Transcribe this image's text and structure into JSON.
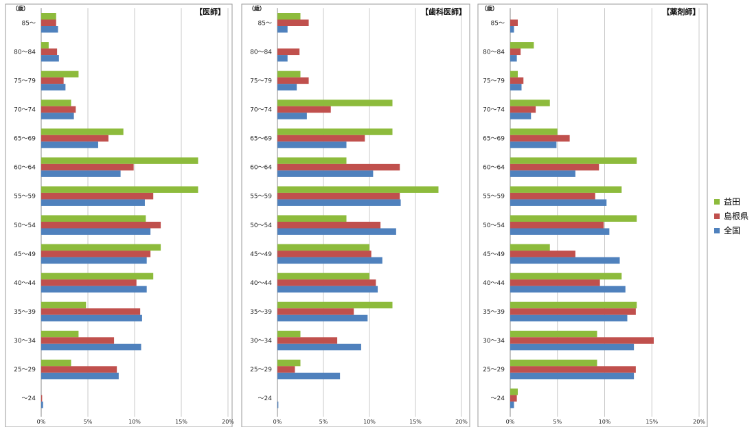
{
  "chart_data": [
    {
      "type": "bar",
      "orientation": "horizontal",
      "title": "【医師】",
      "unit_label": "（歳）",
      "categories": [
        "85～",
        "80～84",
        "75～79",
        "70～74",
        "65～69",
        "60～64",
        "55～59",
        "50～54",
        "45～49",
        "40～44",
        "35～39",
        "30～34",
        "25～29",
        "～24"
      ],
      "series": [
        {
          "name": "益田",
          "values": [
            1.6,
            0.8,
            4.0,
            3.2,
            8.8,
            16.8,
            16.8,
            11.2,
            12.8,
            12.0,
            4.8,
            4.0,
            3.2,
            0.0
          ]
        },
        {
          "name": "島根県",
          "values": [
            1.6,
            1.7,
            2.4,
            3.7,
            7.2,
            9.9,
            12.0,
            12.8,
            11.7,
            10.2,
            10.6,
            7.8,
            8.1,
            0.1
          ]
        },
        {
          "name": "全国",
          "values": [
            1.8,
            1.9,
            2.6,
            3.5,
            6.1,
            8.5,
            11.1,
            11.7,
            11.3,
            11.3,
            10.8,
            10.7,
            8.3,
            0.2
          ]
        }
      ],
      "xlim": [
        0,
        20
      ],
      "xticks": [
        "0%",
        "5%",
        "10%",
        "15%",
        "20%"
      ],
      "grid": true
    },
    {
      "type": "bar",
      "orientation": "horizontal",
      "title": "【歯科医師】",
      "unit_label": "（歳）",
      "categories": [
        "85～",
        "80～84",
        "75～79",
        "70～74",
        "65～69",
        "60～64",
        "55～59",
        "50～54",
        "45～49",
        "40～44",
        "35～39",
        "30～34",
        "25～29",
        "～24"
      ],
      "series": [
        {
          "name": "益田",
          "values": [
            2.5,
            0.0,
            2.5,
            12.5,
            12.5,
            7.5,
            17.5,
            7.5,
            10.0,
            10.0,
            12.5,
            2.5,
            2.5,
            0.0
          ]
        },
        {
          "name": "島根県",
          "values": [
            3.4,
            2.4,
            3.4,
            5.8,
            9.5,
            13.3,
            13.3,
            11.2,
            10.2,
            10.7,
            8.3,
            6.5,
            1.9,
            0.0
          ]
        },
        {
          "name": "全国",
          "values": [
            1.1,
            1.1,
            2.1,
            3.2,
            7.5,
            10.4,
            13.4,
            12.9,
            11.4,
            10.9,
            9.8,
            9.1,
            6.8,
            0.1
          ]
        }
      ],
      "xlim": [
        0,
        20
      ],
      "xticks": [
        "0%",
        "5%",
        "10%",
        "15%",
        "20%"
      ],
      "grid": true
    },
    {
      "type": "bar",
      "orientation": "horizontal",
      "title": "【薬剤師】",
      "unit_label": "（歳）",
      "categories": [
        "85～",
        "80～84",
        "75～79",
        "70～74",
        "65～69",
        "60～64",
        "55～59",
        "50～54",
        "45～49",
        "40～44",
        "35～39",
        "30～34",
        "25～29",
        "～24"
      ],
      "series": [
        {
          "name": "益田",
          "values": [
            0.0,
            2.5,
            0.8,
            4.2,
            5.0,
            13.4,
            11.8,
            13.4,
            4.2,
            11.8,
            13.4,
            9.2,
            9.2,
            0.8
          ]
        },
        {
          "name": "島根県",
          "values": [
            0.8,
            1.1,
            1.4,
            2.7,
            6.3,
            9.4,
            9.0,
            9.9,
            6.9,
            9.5,
            13.3,
            15.2,
            13.3,
            0.7
          ]
        },
        {
          "name": "全国",
          "values": [
            0.4,
            0.7,
            1.2,
            2.2,
            4.9,
            6.9,
            10.2,
            10.5,
            11.6,
            12.2,
            12.4,
            13.1,
            13.1,
            0.4
          ]
        }
      ],
      "xlim": [
        0,
        20
      ],
      "xticks": [
        "0%",
        "5%",
        "10%",
        "15%",
        "20%"
      ],
      "grid": true
    }
  ],
  "legend": {
    "placement": "right",
    "items": [
      {
        "label": "益田",
        "color": "#8dbb3c"
      },
      {
        "label": "島根県",
        "color": "#c0504d"
      },
      {
        "label": "全国",
        "color": "#4f81bd"
      }
    ]
  },
  "colors": {
    "s0": "#8dbb3c",
    "s1": "#c0504d",
    "s2": "#4f81bd",
    "grid": "#c8c8c8",
    "frame": "#9a9a9a"
  }
}
